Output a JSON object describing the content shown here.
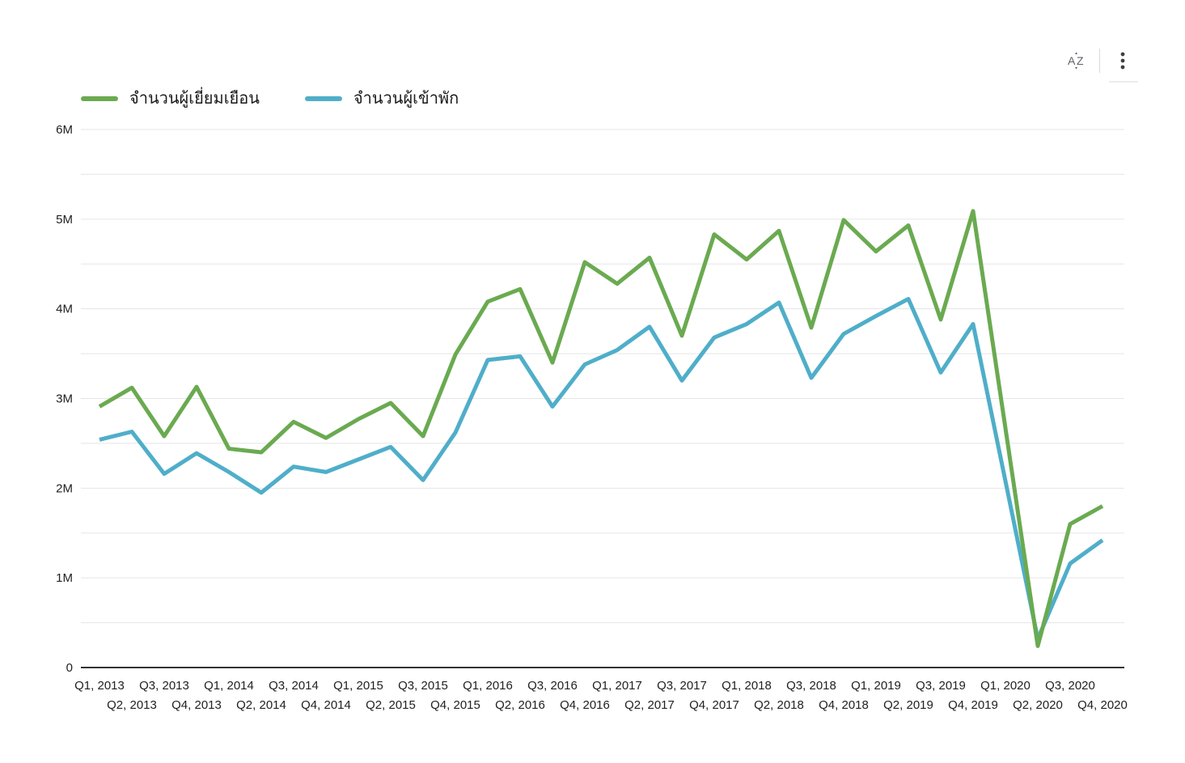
{
  "toolbar": {
    "sort_button_label": "A-Z",
    "menu_button_label": "more options"
  },
  "legend": {
    "items": [
      {
        "label": "จำนวนผู้เยี่ยมเยือน",
        "color": "#6aaa50"
      },
      {
        "label": "จำนวนผู้เข้าพัก",
        "color": "#4faec9"
      }
    ]
  },
  "chart_data": {
    "type": "line",
    "title": "",
    "xlabel": "",
    "ylabel": "",
    "ylim": [
      0,
      6000000
    ],
    "grid": true,
    "legend_position": "top-left",
    "y_tick_labels": [
      "0",
      "1M",
      "2M",
      "3M",
      "4M",
      "5M",
      "6M"
    ],
    "y_minor_grid_step_millions": 0.5,
    "categories": [
      "Q1, 2013",
      "Q2, 2013",
      "Q3, 2013",
      "Q4, 2013",
      "Q1, 2014",
      "Q2, 2014",
      "Q3, 2014",
      "Q4, 2014",
      "Q1, 2015",
      "Q2, 2015",
      "Q3, 2015",
      "Q4, 2015",
      "Q1, 2016",
      "Q2, 2016",
      "Q3, 2016",
      "Q4, 2016",
      "Q1, 2017",
      "Q2, 2017",
      "Q3, 2017",
      "Q4, 2017",
      "Q1, 2018",
      "Q2, 2018",
      "Q3, 2018",
      "Q4, 2018",
      "Q1, 2019",
      "Q2, 2019",
      "Q3, 2019",
      "Q4, 2019",
      "Q1, 2020",
      "Q2, 2020",
      "Q3, 2020",
      "Q4, 2020"
    ],
    "series": [
      {
        "name": "จำนวนผู้เยี่ยมเยือน",
        "color": "#6aaa50",
        "values_millions": [
          2.91,
          3.12,
          2.58,
          3.13,
          2.44,
          2.4,
          2.74,
          2.56,
          2.77,
          2.95,
          2.58,
          3.49,
          4.08,
          4.22,
          3.4,
          4.52,
          4.28,
          4.57,
          3.7,
          4.83,
          4.55,
          4.87,
          3.79,
          4.99,
          4.64,
          4.93,
          3.88,
          5.09,
          2.67,
          0.24,
          1.6,
          1.8
        ]
      },
      {
        "name": "จำนวนผู้เข้าพัก",
        "color": "#4faec9",
        "values_millions": [
          2.54,
          2.63,
          2.16,
          2.39,
          2.18,
          1.95,
          2.24,
          2.18,
          2.32,
          2.46,
          2.09,
          2.62,
          3.43,
          3.47,
          2.91,
          3.38,
          3.54,
          3.8,
          3.2,
          3.68,
          3.83,
          4.07,
          3.23,
          3.72,
          3.92,
          4.11,
          3.29,
          3.83,
          2.08,
          0.32,
          1.16,
          1.42
        ]
      }
    ]
  }
}
